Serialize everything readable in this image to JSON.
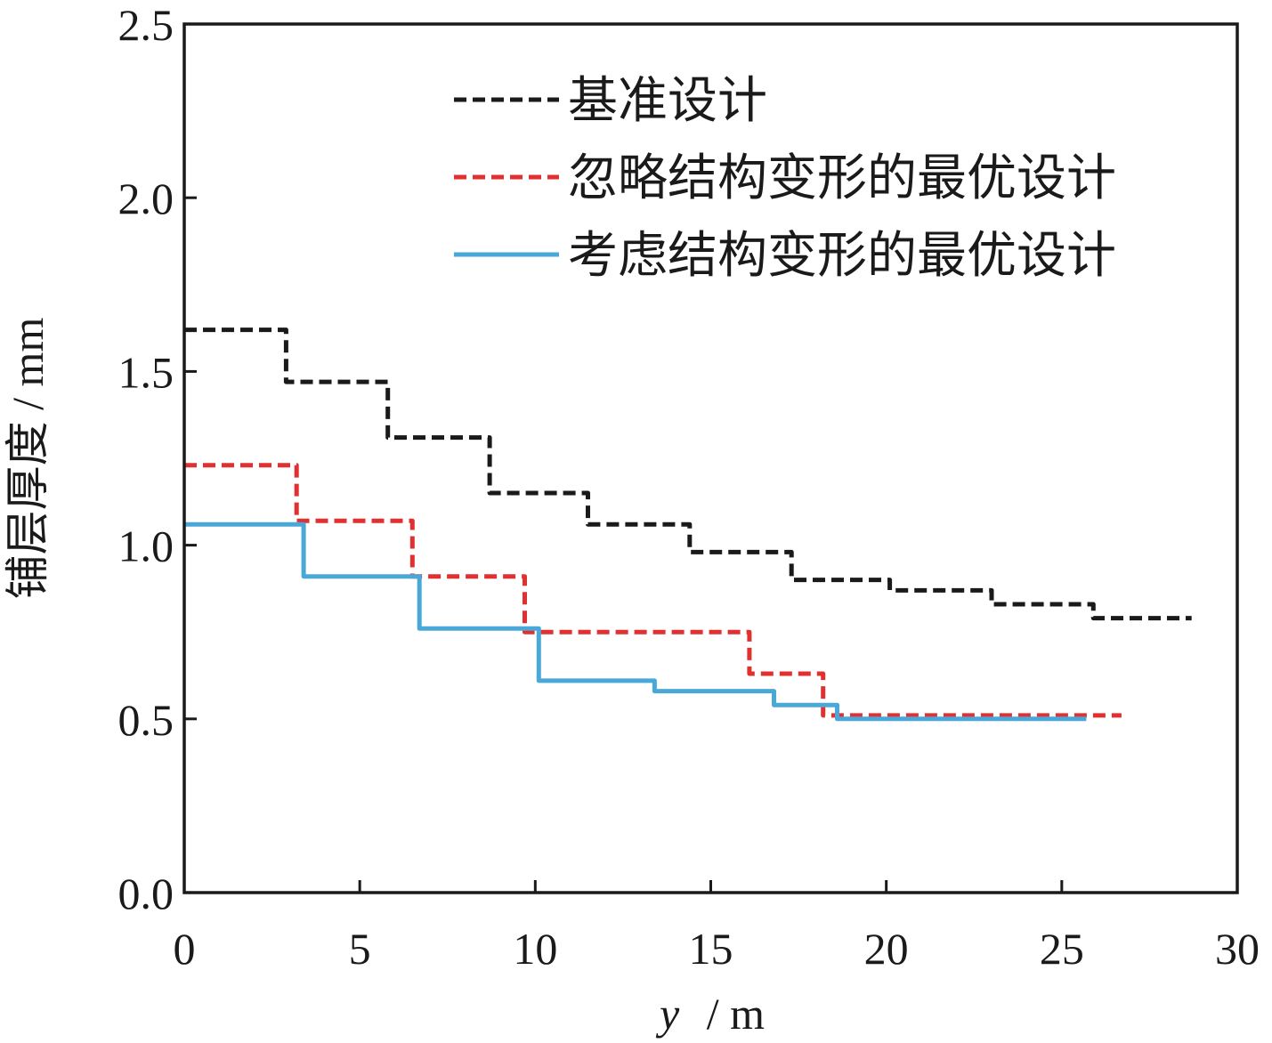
{
  "chart_data": {
    "type": "line",
    "title": "",
    "xlabel": {
      "var": "y",
      "unit": "/ m"
    },
    "ylabel": "铺层厚度 / mm",
    "xlim": [
      0,
      30
    ],
    "ylim": [
      0,
      2.5
    ],
    "x_ticks": [
      "0",
      "5",
      "10",
      "15",
      "20",
      "25",
      "30"
    ],
    "y_ticks": [
      "0.0",
      "0.5",
      "1.0",
      "1.5",
      "2.0",
      "2.5"
    ],
    "grid": false,
    "legend_position": "top-right",
    "series": [
      {
        "name": "基准设计",
        "color": "#1a1a1a",
        "style": "dashed",
        "x": [
          0,
          2.9,
          2.9,
          5.8,
          5.8,
          8.7,
          8.7,
          11.5,
          11.5,
          14.4,
          14.4,
          17.3,
          17.3,
          20.1,
          20.1,
          23.0,
          23.0,
          25.9,
          25.9,
          28.7
        ],
        "y": [
          1.62,
          1.62,
          1.47,
          1.47,
          1.31,
          1.31,
          1.15,
          1.15,
          1.06,
          1.06,
          0.98,
          0.98,
          0.9,
          0.9,
          0.87,
          0.87,
          0.83,
          0.83,
          0.79,
          0.79
        ]
      },
      {
        "name": "忽略结构变形的最优设计",
        "color": "#e03030",
        "style": "dashed",
        "x": [
          0,
          3.2,
          3.2,
          6.5,
          6.5,
          9.7,
          9.7,
          16.1,
          16.1,
          18.2,
          18.2,
          26.7
        ],
        "y": [
          1.23,
          1.23,
          1.07,
          1.07,
          0.91,
          0.91,
          0.75,
          0.75,
          0.63,
          0.63,
          0.51,
          0.51
        ]
      },
      {
        "name": "考虑结构变形的最优设计",
        "color": "#4aa8d8",
        "style": "solid",
        "x": [
          0,
          3.4,
          3.4,
          6.7,
          6.7,
          10.1,
          10.1,
          13.4,
          13.4,
          16.8,
          16.8,
          18.6,
          18.6,
          25.7
        ],
        "y": [
          1.06,
          1.06,
          0.91,
          0.91,
          0.76,
          0.76,
          0.61,
          0.61,
          0.58,
          0.58,
          0.54,
          0.54,
          0.5,
          0.5
        ]
      }
    ]
  }
}
